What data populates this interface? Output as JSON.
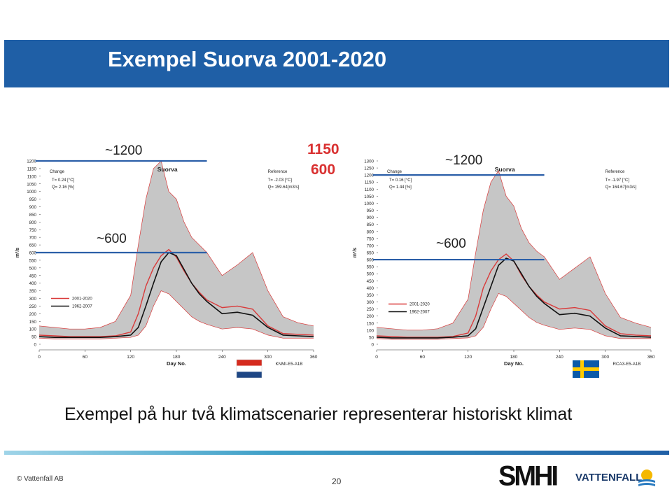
{
  "slide": {
    "title": "Exempel Suorva 2001-2020",
    "caption": "Exempel på hur två klimatscenarier representerar historiskt klimat",
    "copyright": "© Vattenfall AB",
    "page_number": "20",
    "logos": {
      "smhi": "SMHI",
      "vattenfall": "VATTENFALL"
    }
  },
  "annotations": {
    "left_high": "~1200",
    "left_low": "~600",
    "right_high": "~1200",
    "right_low": "~600",
    "red_high": "1150",
    "red_low": "600"
  },
  "colors": {
    "header": "#1f5fa6",
    "series_2001": "#d93a3a",
    "series_1962": "#111111",
    "envelope": "#c6c6c6",
    "ref_lines": "#2b5fa8"
  },
  "chart_data": [
    {
      "type": "line",
      "plot_title": "Suorva",
      "ylabel": "m³/s",
      "xlabel": "Day No.",
      "xlim": [
        0,
        360
      ],
      "ylim": [
        0,
        1200
      ],
      "xticks": [
        0,
        60,
        120,
        180,
        240,
        300,
        360
      ],
      "yticks": [
        0,
        50,
        100,
        150,
        200,
        250,
        300,
        350,
        400,
        450,
        500,
        550,
        600,
        650,
        700,
        750,
        800,
        850,
        900,
        950,
        1000,
        1050,
        1100,
        1150,
        1200
      ],
      "change": {
        "label": "Change",
        "t": "T= 0.24 [°C]",
        "q": "Q= 2.16 [%]"
      },
      "reference": {
        "label": "Reference",
        "t": "T= -2.03 [°C]",
        "q": "Q= 159.64[m3/s]"
      },
      "scenario": "KNMI-E5-A1B",
      "flag": "netherlands",
      "ref_levels": [
        1200,
        600
      ],
      "x": [
        0,
        20,
        40,
        60,
        80,
        100,
        120,
        130,
        140,
        150,
        160,
        170,
        180,
        190,
        200,
        210,
        220,
        240,
        260,
        280,
        300,
        320,
        340,
        360
      ],
      "series": [
        {
          "name": "2001-2020",
          "values": [
            60,
            55,
            50,
            50,
            50,
            55,
            80,
            200,
            380,
            500,
            580,
            620,
            570,
            480,
            400,
            340,
            290,
            240,
            250,
            230,
            120,
            70,
            65,
            60
          ]
        },
        {
          "name": "1962-2007",
          "values": [
            50,
            45,
            45,
            45,
            45,
            50,
            60,
            110,
            250,
            400,
            540,
            600,
            580,
            490,
            400,
            330,
            280,
            200,
            210,
            190,
            110,
            60,
            55,
            50
          ]
        }
      ],
      "envelope_max": [
        120,
        110,
        100,
        100,
        110,
        150,
        320,
        650,
        950,
        1150,
        1200,
        1000,
        950,
        800,
        700,
        650,
        600,
        450,
        520,
        600,
        350,
        180,
        140,
        120
      ],
      "envelope_min": [
        40,
        35,
        35,
        35,
        35,
        40,
        45,
        60,
        120,
        250,
        350,
        330,
        280,
        230,
        180,
        150,
        130,
        100,
        110,
        100,
        60,
        40,
        40,
        40
      ]
    },
    {
      "type": "line",
      "plot_title": "Suorva",
      "ylabel": "m³/s",
      "xlabel": "Day No.",
      "xlim": [
        0,
        360
      ],
      "ylim": [
        0,
        1300
      ],
      "xticks": [
        0,
        60,
        120,
        180,
        240,
        300,
        360
      ],
      "yticks": [
        0,
        50,
        100,
        150,
        200,
        250,
        300,
        350,
        400,
        450,
        500,
        550,
        600,
        650,
        700,
        750,
        800,
        850,
        900,
        950,
        1000,
        1050,
        1100,
        1150,
        1200,
        1250,
        1300
      ],
      "change": {
        "label": "Change",
        "t": "T= 0.16 [°C]",
        "q": "Q= 1.44 [%]"
      },
      "reference": {
        "label": "Reference",
        "t": "T= -1.97 [°C]",
        "q": "Q= 164.67[m3/s]"
      },
      "scenario": "RCA3-E5-A1B",
      "flag": "sweden",
      "ref_levels": [
        1200,
        600
      ],
      "x": [
        0,
        20,
        40,
        60,
        80,
        100,
        120,
        130,
        140,
        150,
        160,
        170,
        180,
        190,
        200,
        210,
        220,
        240,
        260,
        280,
        300,
        320,
        340,
        360
      ],
      "series": [
        {
          "name": "2001-2020",
          "values": [
            60,
            55,
            50,
            50,
            50,
            55,
            80,
            200,
            400,
            520,
            600,
            640,
            590,
            490,
            410,
            350,
            300,
            250,
            260,
            240,
            130,
            75,
            65,
            60
          ]
        },
        {
          "name": "1962-2007",
          "values": [
            50,
            45,
            45,
            45,
            45,
            50,
            60,
            110,
            260,
            410,
            560,
            610,
            590,
            500,
            410,
            340,
            290,
            210,
            220,
            200,
            115,
            60,
            55,
            50
          ]
        }
      ],
      "envelope_max": [
        120,
        110,
        100,
        100,
        110,
        150,
        320,
        650,
        950,
        1150,
        1230,
        1050,
        980,
        820,
        720,
        660,
        620,
        460,
        540,
        620,
        360,
        190,
        150,
        120
      ],
      "envelope_min": [
        40,
        35,
        35,
        35,
        35,
        40,
        45,
        60,
        120,
        250,
        360,
        340,
        290,
        240,
        190,
        155,
        135,
        105,
        115,
        105,
        60,
        40,
        40,
        40
      ]
    }
  ]
}
